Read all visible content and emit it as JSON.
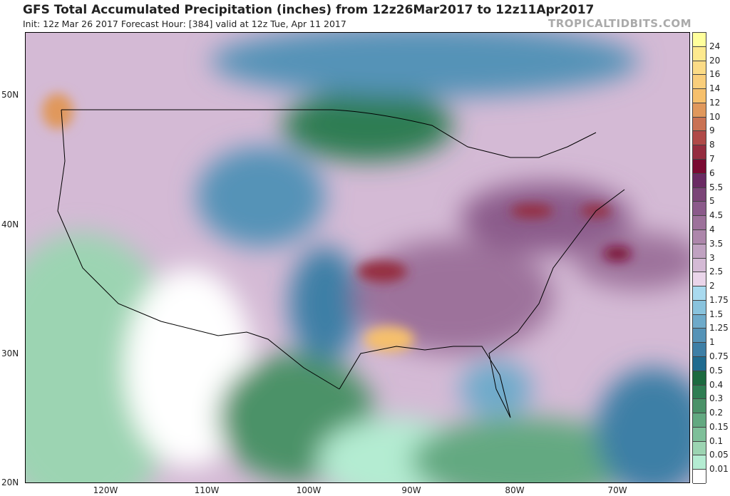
{
  "title": "GFS Total Accumulated Precipitation (inches) from 12z26Mar2017 to 12z11Apr2017",
  "subtitle": "Init: 12z Mar 26 2017   Forecast Hour: [384]   valid at 12z Tue, Apr 11 2017",
  "credit": "TROPICALTIDBITS.COM",
  "latitude_labels": [
    "50N",
    "40N",
    "30N",
    "20N"
  ],
  "longitude_labels": [
    "120W",
    "110W",
    "100W",
    "90W",
    "80W",
    "70W"
  ],
  "colorbar": {
    "labels": [
      "24",
      "20",
      "16",
      "14",
      "12",
      "10",
      "9",
      "8",
      "7",
      "6",
      "5.5",
      "5",
      "4.5",
      "4",
      "3.5",
      "3",
      "2.5",
      "2",
      "1.75",
      "1.5",
      "1.25",
      "1",
      "0.75",
      "0.5",
      "0.4",
      "0.3",
      "0.2",
      "0.15",
      "0.1",
      "0.05",
      "0.01"
    ],
    "colors": [
      "#ffff9c",
      "#fde98e",
      "#fbdb86",
      "#f9ce7b",
      "#f6c06c",
      "#e0985c",
      "#c97253",
      "#b04a48",
      "#952d3f",
      "#7a0b32",
      "#6a2b63",
      "#7b4578",
      "#8b5b8b",
      "#9d729b",
      "#ad87ab",
      "#c0a2c1",
      "#d4bad5",
      "#ead5ea",
      "#a9daef",
      "#89c3dd",
      "#6eaaca",
      "#5593b7",
      "#3e7fa6",
      "#1f6b8f",
      "#1c6a3f",
      "#2f7d52",
      "#4b9268",
      "#63a981",
      "#7ebf99",
      "#9cd4b2",
      "#b4ecd2",
      "#ffffff"
    ]
  }
}
